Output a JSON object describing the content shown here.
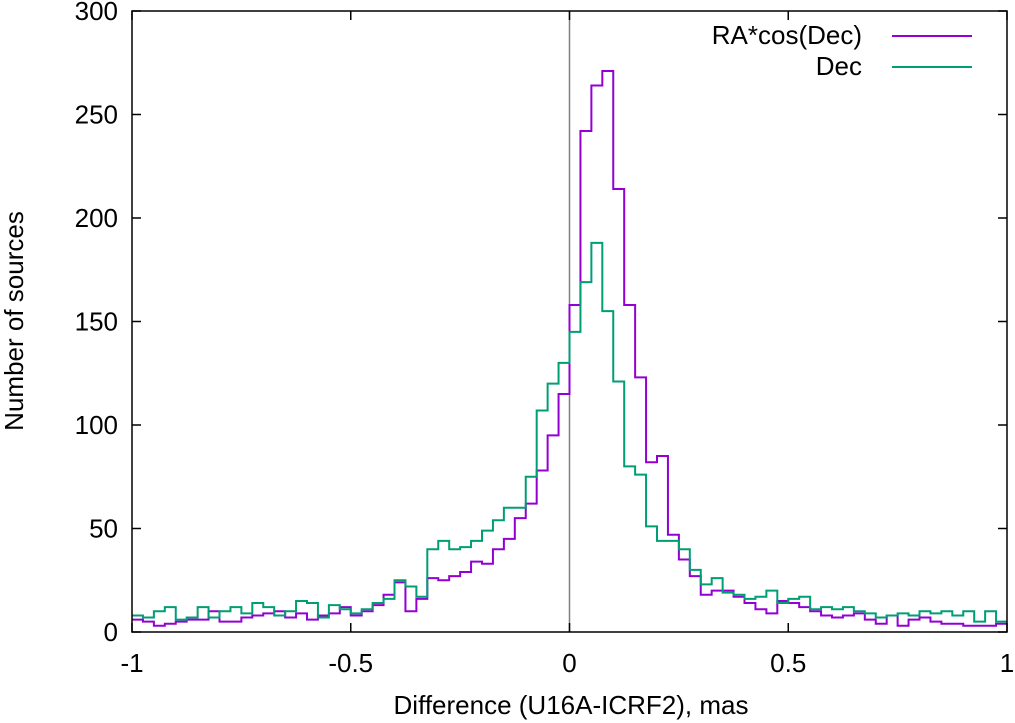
{
  "chart_data": {
    "type": "histogram",
    "title": "",
    "xlabel": "Difference (U16A-ICRF2), mas",
    "ylabel": "Number of sources",
    "xlim": [
      -1,
      1
    ],
    "ylim": [
      0,
      300
    ],
    "xticks": [
      -1,
      -0.5,
      0,
      0.5,
      1
    ],
    "xtick_labels": [
      "-1",
      "-0.5",
      "0",
      "0.5",
      "1"
    ],
    "yticks": [
      0,
      50,
      100,
      150,
      200,
      250,
      300
    ],
    "ytick_labels": [
      "0",
      "50",
      "100",
      "150",
      "200",
      "250",
      "300"
    ],
    "vertical_reference_line_x": 0,
    "legend_position": "top-right",
    "bin_width": 0.025,
    "bin_edges_start": -1,
    "series": [
      {
        "name": "RA*cos(Dec)",
        "color": "#9400d3",
        "values": [
          6,
          5,
          3,
          4,
          5,
          6,
          6,
          10,
          5,
          5,
          7,
          8,
          9,
          10,
          7,
          9,
          6,
          8,
          9,
          12,
          8,
          10,
          13,
          18,
          24,
          10,
          16,
          26,
          25,
          27,
          29,
          34,
          33,
          40,
          45,
          55,
          62,
          78,
          95,
          115,
          158,
          242,
          264,
          271,
          214,
          158,
          123,
          82,
          85,
          47,
          35,
          27,
          18,
          20,
          20,
          17,
          14,
          11,
          9,
          15,
          14,
          12,
          10,
          8,
          7,
          8,
          9,
          6,
          4,
          8,
          3,
          6,
          7,
          5,
          4,
          4,
          3,
          3,
          3,
          4
        ],
        "center_spike": 271
      },
      {
        "name": "Dec",
        "color": "#009e73",
        "values": [
          8,
          7,
          10,
          12,
          6,
          7,
          12,
          7,
          10,
          12,
          9,
          14,
          12,
          8,
          10,
          15,
          14,
          7,
          13,
          11,
          9,
          11,
          14,
          16,
          25,
          22,
          17,
          40,
          44,
          40,
          41,
          44,
          49,
          54,
          60,
          60,
          75,
          107,
          120,
          130,
          145,
          169,
          188,
          155,
          121,
          80,
          76,
          51,
          44,
          44,
          40,
          30,
          23,
          26,
          19,
          18,
          16,
          17,
          20,
          14,
          16,
          17,
          11,
          12,
          11,
          12,
          10,
          9,
          7,
          8,
          9,
          8,
          10,
          9,
          10,
          8,
          10,
          5,
          10,
          5
        ]
      }
    ]
  }
}
